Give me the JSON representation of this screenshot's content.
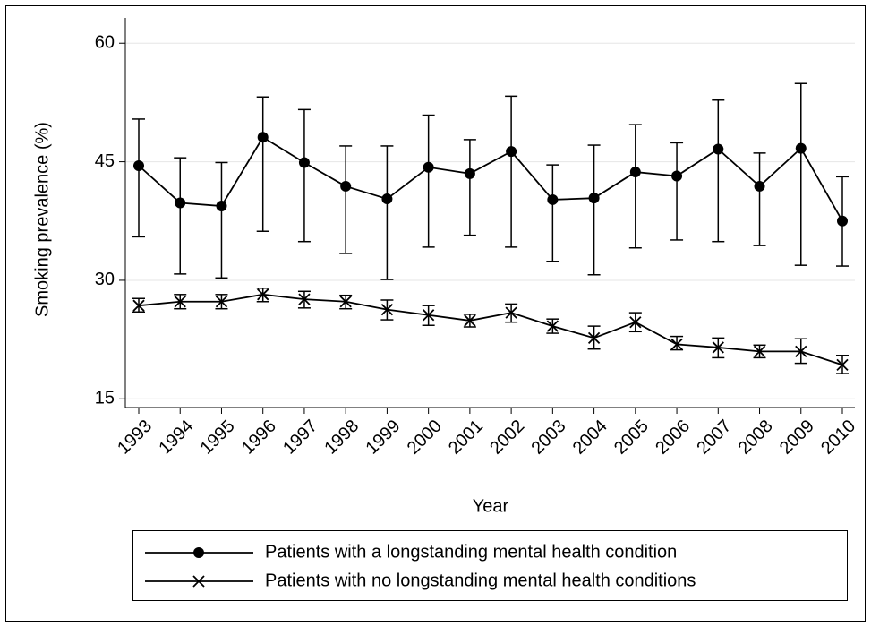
{
  "chart_data": {
    "type": "line",
    "categories": [
      "1993",
      "1994",
      "1995",
      "1996",
      "1997",
      "1998",
      "1999",
      "2000",
      "2001",
      "2002",
      "2003",
      "2004",
      "2005",
      "2006",
      "2007",
      "2008",
      "2009",
      "2010"
    ],
    "x_label": "Year",
    "y_label": "Smoking prevalence (%)",
    "ylim": [
      13.9,
      63.2
    ],
    "yticks": [
      15,
      30,
      45,
      60
    ],
    "grid": true,
    "legend": "bottom",
    "series": [
      {
        "name": "Patients with a longstanding mental health condition",
        "color": "#000000",
        "marker": "circle",
        "values": [
          44.5,
          39.8,
          39.4,
          48.1,
          44.9,
          41.9,
          40.3,
          44.3,
          43.5,
          46.3,
          40.2,
          40.4,
          43.7,
          43.2,
          46.6,
          41.9,
          46.7,
          37.5
        ],
        "lower": [
          35.5,
          30.8,
          30.3,
          36.2,
          34.9,
          33.4,
          30.1,
          34.2,
          35.7,
          34.2,
          32.4,
          30.7,
          34.1,
          35.1,
          34.9,
          34.4,
          31.9,
          31.8
        ],
        "upper": [
          50.4,
          45.5,
          44.9,
          53.2,
          51.6,
          47.0,
          47.0,
          50.9,
          47.8,
          53.3,
          44.6,
          47.1,
          49.7,
          47.4,
          52.8,
          46.1,
          54.9,
          43.1
        ]
      },
      {
        "name": "Patients with no longstanding mental health conditions",
        "color": "#000000",
        "marker": "x",
        "values": [
          26.8,
          27.3,
          27.3,
          28.2,
          27.6,
          27.3,
          26.3,
          25.6,
          24.9,
          25.9,
          24.2,
          22.7,
          24.7,
          21.9,
          21.5,
          21.0,
          21.0,
          19.3
        ],
        "lower": [
          26.0,
          26.4,
          26.4,
          27.3,
          26.5,
          26.4,
          25.0,
          24.3,
          24.1,
          24.7,
          23.3,
          21.3,
          23.5,
          21.2,
          20.2,
          20.2,
          19.5,
          18.2
        ],
        "upper": [
          27.7,
          28.2,
          28.2,
          29.0,
          28.6,
          28.1,
          27.5,
          26.8,
          25.7,
          27.0,
          25.1,
          24.2,
          25.9,
          22.9,
          22.7,
          21.8,
          22.6,
          20.5
        ]
      }
    ]
  }
}
